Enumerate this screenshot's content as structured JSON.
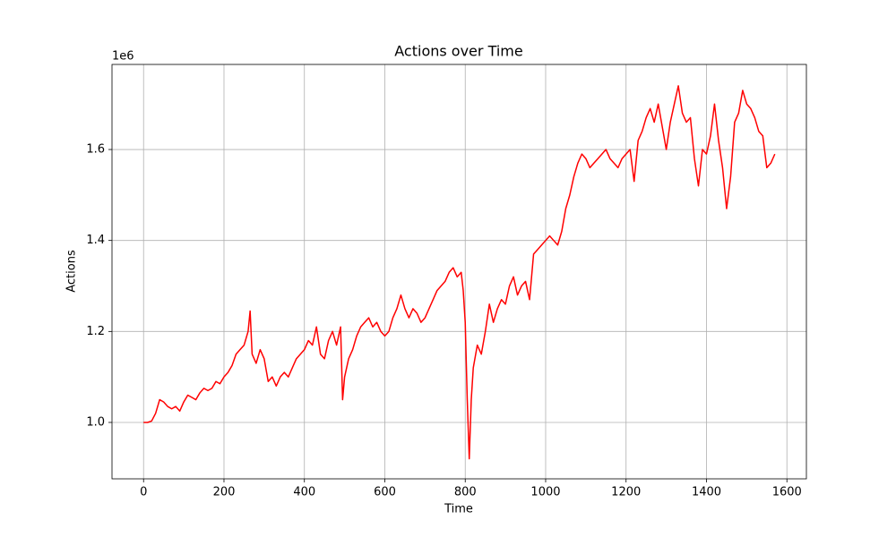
{
  "chart_data": {
    "type": "line",
    "title": "Actions over Time",
    "xlabel": "Time",
    "ylabel": "Actions",
    "y_offset_label": "1e6",
    "xlim": [
      -78.5,
      1648.5
    ],
    "xticks": [
      0,
      200,
      400,
      600,
      800,
      1000,
      1200,
      1400,
      1600
    ],
    "ylim": [
      876000,
      1787000
    ],
    "yticks": [
      {
        "value": 1000000,
        "label": "1.0"
      },
      {
        "value": 1200000,
        "label": "1.2"
      },
      {
        "value": 1400000,
        "label": "1.4"
      },
      {
        "value": 1600000,
        "label": "1.6"
      }
    ],
    "grid": true,
    "series": [
      {
        "color": "#ff0000",
        "x": [
          0,
          10,
          20,
          30,
          40,
          50,
          60,
          70,
          80,
          90,
          100,
          110,
          120,
          130,
          140,
          150,
          160,
          170,
          180,
          190,
          200,
          210,
          220,
          230,
          240,
          250,
          260,
          265,
          270,
          280,
          290,
          300,
          310,
          320,
          330,
          340,
          350,
          360,
          370,
          380,
          390,
          400,
          410,
          420,
          430,
          440,
          450,
          460,
          470,
          480,
          490,
          495,
          500,
          510,
          520,
          530,
          540,
          550,
          560,
          570,
          580,
          590,
          600,
          610,
          620,
          630,
          640,
          650,
          660,
          670,
          680,
          690,
          700,
          710,
          720,
          730,
          740,
          750,
          760,
          770,
          780,
          790,
          795,
          800,
          805,
          810,
          815,
          820,
          830,
          840,
          850,
          860,
          870,
          880,
          890,
          900,
          910,
          920,
          930,
          940,
          950,
          960,
          970,
          980,
          990,
          1000,
          1010,
          1020,
          1030,
          1040,
          1050,
          1060,
          1070,
          1080,
          1090,
          1100,
          1110,
          1120,
          1130,
          1140,
          1150,
          1160,
          1170,
          1180,
          1190,
          1200,
          1210,
          1220,
          1230,
          1240,
          1250,
          1260,
          1270,
          1280,
          1290,
          1300,
          1310,
          1320,
          1330,
          1340,
          1350,
          1360,
          1370,
          1380,
          1390,
          1400,
          1410,
          1420,
          1430,
          1440,
          1450,
          1460,
          1470,
          1480,
          1490,
          1500,
          1510,
          1520,
          1530,
          1540,
          1550,
          1560,
          1570
        ],
        "values": [
          1000000,
          1000000,
          1003000,
          1020000,
          1050000,
          1045000,
          1035000,
          1030000,
          1035000,
          1025000,
          1045000,
          1060000,
          1055000,
          1050000,
          1065000,
          1075000,
          1070000,
          1075000,
          1090000,
          1085000,
          1100000,
          1110000,
          1125000,
          1150000,
          1160000,
          1170000,
          1200000,
          1245000,
          1150000,
          1130000,
          1160000,
          1140000,
          1090000,
          1100000,
          1080000,
          1100000,
          1110000,
          1100000,
          1120000,
          1140000,
          1150000,
          1160000,
          1180000,
          1170000,
          1210000,
          1150000,
          1140000,
          1180000,
          1200000,
          1170000,
          1210000,
          1050000,
          1100000,
          1140000,
          1160000,
          1190000,
          1210000,
          1220000,
          1230000,
          1210000,
          1220000,
          1200000,
          1190000,
          1200000,
          1230000,
          1250000,
          1280000,
          1250000,
          1230000,
          1250000,
          1240000,
          1220000,
          1230000,
          1250000,
          1270000,
          1290000,
          1300000,
          1310000,
          1330000,
          1340000,
          1320000,
          1330000,
          1290000,
          1220000,
          1050000,
          920000,
          1050000,
          1120000,
          1170000,
          1150000,
          1200000,
          1260000,
          1220000,
          1250000,
          1270000,
          1260000,
          1300000,
          1320000,
          1280000,
          1300000,
          1310000,
          1270000,
          1370000,
          1380000,
          1390000,
          1400000,
          1410000,
          1400000,
          1390000,
          1420000,
          1470000,
          1500000,
          1540000,
          1570000,
          1590000,
          1580000,
          1560000,
          1570000,
          1580000,
          1590000,
          1600000,
          1580000,
          1570000,
          1560000,
          1580000,
          1590000,
          1600000,
          1530000,
          1620000,
          1640000,
          1670000,
          1690000,
          1660000,
          1700000,
          1650000,
          1600000,
          1660000,
          1700000,
          1740000,
          1680000,
          1660000,
          1670000,
          1580000,
          1520000,
          1600000,
          1590000,
          1630000,
          1700000,
          1620000,
          1560000,
          1470000,
          1540000,
          1660000,
          1680000,
          1730000,
          1700000,
          1690000,
          1670000,
          1640000,
          1630000,
          1560000,
          1570000,
          1590000
        ]
      }
    ]
  }
}
